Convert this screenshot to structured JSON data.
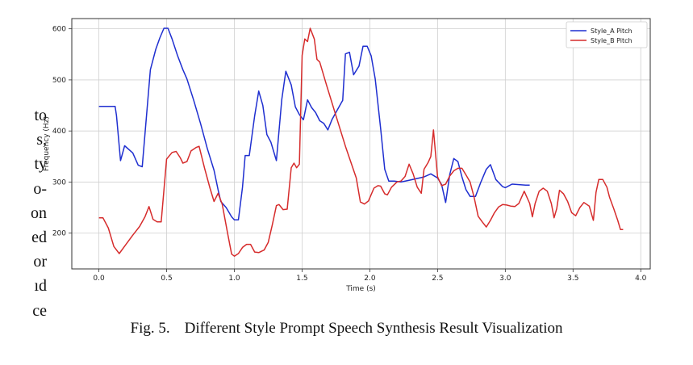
{
  "side_text": [
    "to",
    "s,",
    "ty",
    "o-",
    "on",
    "ed",
    "or",
    "ıd",
    "ce"
  ],
  "caption": {
    "label": "Fig. 5.",
    "text": "Different Style Prompt Speech Synthesis Result Visualization"
  },
  "chart_data": {
    "type": "line",
    "title": "",
    "xlabel": "Time (s)",
    "ylabel": "Frequency (Hz)",
    "xlim": [
      -0.2,
      4.07
    ],
    "ylim": [
      130,
      620
    ],
    "xticks": [
      0.0,
      0.5,
      1.0,
      1.5,
      2.0,
      2.5,
      3.0,
      3.5,
      4.0
    ],
    "xtick_labels": [
      "0.0",
      "0.5",
      "1.0",
      "1.5",
      "2.0",
      "2.5",
      "3.0",
      "3.5",
      "4.0"
    ],
    "yticks": [
      200,
      300,
      400,
      500,
      600
    ],
    "ytick_labels": [
      "200",
      "300",
      "400",
      "500",
      "600"
    ],
    "grid": true,
    "legend_position": "top-right",
    "series": [
      {
        "name": "Style_A Pitch",
        "color": "#1f2fd0",
        "points": [
          [
            0.0,
            448
          ],
          [
            0.12,
            448
          ],
          [
            0.13,
            430
          ],
          [
            0.16,
            342
          ],
          [
            0.19,
            371
          ],
          [
            0.25,
            357
          ],
          [
            0.29,
            333
          ],
          [
            0.32,
            330
          ],
          [
            0.38,
            520
          ],
          [
            0.42,
            560
          ],
          [
            0.45,
            582
          ],
          [
            0.48,
            601
          ],
          [
            0.51,
            601
          ],
          [
            0.54,
            580
          ],
          [
            0.58,
            548
          ],
          [
            0.62,
            520
          ],
          [
            0.65,
            502
          ],
          [
            0.7,
            460
          ],
          [
            0.75,
            415
          ],
          [
            0.8,
            366
          ],
          [
            0.85,
            323
          ],
          [
            0.88,
            285
          ],
          [
            0.9,
            262
          ],
          [
            0.94,
            250
          ],
          [
            0.98,
            232
          ],
          [
            1.0,
            226
          ],
          [
            1.03,
            226
          ],
          [
            1.06,
            290
          ],
          [
            1.08,
            352
          ],
          [
            1.11,
            352
          ],
          [
            1.15,
            430
          ],
          [
            1.18,
            478
          ],
          [
            1.21,
            450
          ],
          [
            1.24,
            393
          ],
          [
            1.27,
            378
          ],
          [
            1.31,
            342
          ],
          [
            1.35,
            462
          ],
          [
            1.38,
            517
          ],
          [
            1.42,
            490
          ],
          [
            1.45,
            447
          ],
          [
            1.48,
            432
          ],
          [
            1.51,
            422
          ],
          [
            1.54,
            461
          ],
          [
            1.57,
            446
          ],
          [
            1.6,
            436
          ],
          [
            1.63,
            420
          ],
          [
            1.66,
            415
          ],
          [
            1.69,
            402
          ],
          [
            1.72,
            422
          ],
          [
            1.77,
            446
          ],
          [
            1.8,
            460
          ],
          [
            1.82,
            551
          ],
          [
            1.85,
            554
          ],
          [
            1.88,
            510
          ],
          [
            1.92,
            527
          ],
          [
            1.95,
            566
          ],
          [
            1.98,
            566
          ],
          [
            2.01,
            547
          ],
          [
            2.04,
            502
          ],
          [
            2.08,
            405
          ],
          [
            2.11,
            325
          ],
          [
            2.14,
            302
          ],
          [
            2.18,
            302
          ],
          [
            2.23,
            300
          ],
          [
            2.3,
            304
          ],
          [
            2.4,
            310
          ],
          [
            2.45,
            316
          ],
          [
            2.5,
            308
          ],
          [
            2.53,
            295
          ],
          [
            2.56,
            260
          ],
          [
            2.59,
            315
          ],
          [
            2.62,
            346
          ],
          [
            2.65,
            340
          ],
          [
            2.68,
            310
          ],
          [
            2.71,
            285
          ],
          [
            2.74,
            272
          ],
          [
            2.78,
            272
          ],
          [
            2.82,
            300
          ],
          [
            2.86,
            325
          ],
          [
            2.89,
            334
          ],
          [
            2.93,
            305
          ],
          [
            2.98,
            291
          ],
          [
            3.0,
            289
          ],
          [
            3.05,
            296
          ],
          [
            3.1,
            295
          ],
          [
            3.15,
            294
          ],
          [
            3.18,
            294
          ]
        ]
      },
      {
        "name": "Style_B Pitch",
        "color": "#d62c2c",
        "points": [
          [
            0.0,
            230
          ],
          [
            0.03,
            230
          ],
          [
            0.07,
            210
          ],
          [
            0.11,
            174
          ],
          [
            0.15,
            160
          ],
          [
            0.2,
            178
          ],
          [
            0.25,
            196
          ],
          [
            0.3,
            213
          ],
          [
            0.34,
            232
          ],
          [
            0.37,
            252
          ],
          [
            0.4,
            227
          ],
          [
            0.43,
            222
          ],
          [
            0.46,
            222
          ],
          [
            0.5,
            345
          ],
          [
            0.54,
            358
          ],
          [
            0.57,
            360
          ],
          [
            0.6,
            348
          ],
          [
            0.62,
            337
          ],
          [
            0.65,
            340
          ],
          [
            0.68,
            361
          ],
          [
            0.72,
            368
          ],
          [
            0.74,
            370
          ],
          [
            0.78,
            327
          ],
          [
            0.82,
            288
          ],
          [
            0.85,
            262
          ],
          [
            0.88,
            278
          ],
          [
            0.91,
            257
          ],
          [
            0.95,
            200
          ],
          [
            0.98,
            159
          ],
          [
            1.0,
            155
          ],
          [
            1.03,
            160
          ],
          [
            1.06,
            172
          ],
          [
            1.09,
            178
          ],
          [
            1.12,
            178
          ],
          [
            1.15,
            163
          ],
          [
            1.18,
            162
          ],
          [
            1.22,
            167
          ],
          [
            1.25,
            182
          ],
          [
            1.28,
            216
          ],
          [
            1.31,
            254
          ],
          [
            1.33,
            256
          ],
          [
            1.36,
            246
          ],
          [
            1.39,
            247
          ],
          [
            1.42,
            328
          ],
          [
            1.44,
            337
          ],
          [
            1.46,
            328
          ],
          [
            1.48,
            335
          ],
          [
            1.5,
            548
          ],
          [
            1.52,
            580
          ],
          [
            1.54,
            575
          ],
          [
            1.56,
            601
          ],
          [
            1.59,
            580
          ],
          [
            1.61,
            540
          ],
          [
            1.63,
            535
          ],
          [
            1.68,
            490
          ],
          [
            1.75,
            430
          ],
          [
            1.82,
            370
          ],
          [
            1.9,
            308
          ],
          [
            1.93,
            261
          ],
          [
            1.96,
            257
          ],
          [
            1.99,
            263
          ],
          [
            2.03,
            288
          ],
          [
            2.06,
            293
          ],
          [
            2.08,
            292
          ],
          [
            2.11,
            277
          ],
          [
            2.13,
            275
          ],
          [
            2.16,
            290
          ],
          [
            2.2,
            300
          ],
          [
            2.23,
            302
          ],
          [
            2.26,
            311
          ],
          [
            2.29,
            335
          ],
          [
            2.32,
            316
          ],
          [
            2.35,
            290
          ],
          [
            2.38,
            278
          ],
          [
            2.4,
            325
          ],
          [
            2.43,
            338
          ],
          [
            2.45,
            350
          ],
          [
            2.47,
            402
          ],
          [
            2.5,
            310
          ],
          [
            2.53,
            293
          ],
          [
            2.56,
            296
          ],
          [
            2.59,
            312
          ],
          [
            2.62,
            322
          ],
          [
            2.65,
            327
          ],
          [
            2.68,
            327
          ],
          [
            2.71,
            314
          ],
          [
            2.74,
            300
          ],
          [
            2.77,
            270
          ],
          [
            2.8,
            233
          ],
          [
            2.83,
            222
          ],
          [
            2.86,
            212
          ],
          [
            2.89,
            225
          ],
          [
            2.92,
            240
          ],
          [
            2.95,
            251
          ],
          [
            2.98,
            256
          ],
          [
            3.01,
            255
          ],
          [
            3.04,
            253
          ],
          [
            3.07,
            252
          ],
          [
            3.1,
            258
          ],
          [
            3.14,
            282
          ],
          [
            3.18,
            258
          ],
          [
            3.2,
            232
          ],
          [
            3.22,
            258
          ],
          [
            3.25,
            282
          ],
          [
            3.28,
            288
          ],
          [
            3.31,
            282
          ],
          [
            3.34,
            258
          ],
          [
            3.36,
            230
          ],
          [
            3.38,
            248
          ],
          [
            3.4,
            284
          ],
          [
            3.43,
            277
          ],
          [
            3.46,
            262
          ],
          [
            3.49,
            240
          ],
          [
            3.52,
            234
          ],
          [
            3.55,
            250
          ],
          [
            3.58,
            260
          ],
          [
            3.62,
            253
          ],
          [
            3.65,
            225
          ],
          [
            3.67,
            280
          ],
          [
            3.69,
            305
          ],
          [
            3.72,
            305
          ],
          [
            3.75,
            290
          ],
          [
            3.77,
            270
          ],
          [
            3.8,
            248
          ],
          [
            3.83,
            225
          ],
          [
            3.85,
            207
          ],
          [
            3.87,
            207
          ]
        ]
      }
    ]
  }
}
